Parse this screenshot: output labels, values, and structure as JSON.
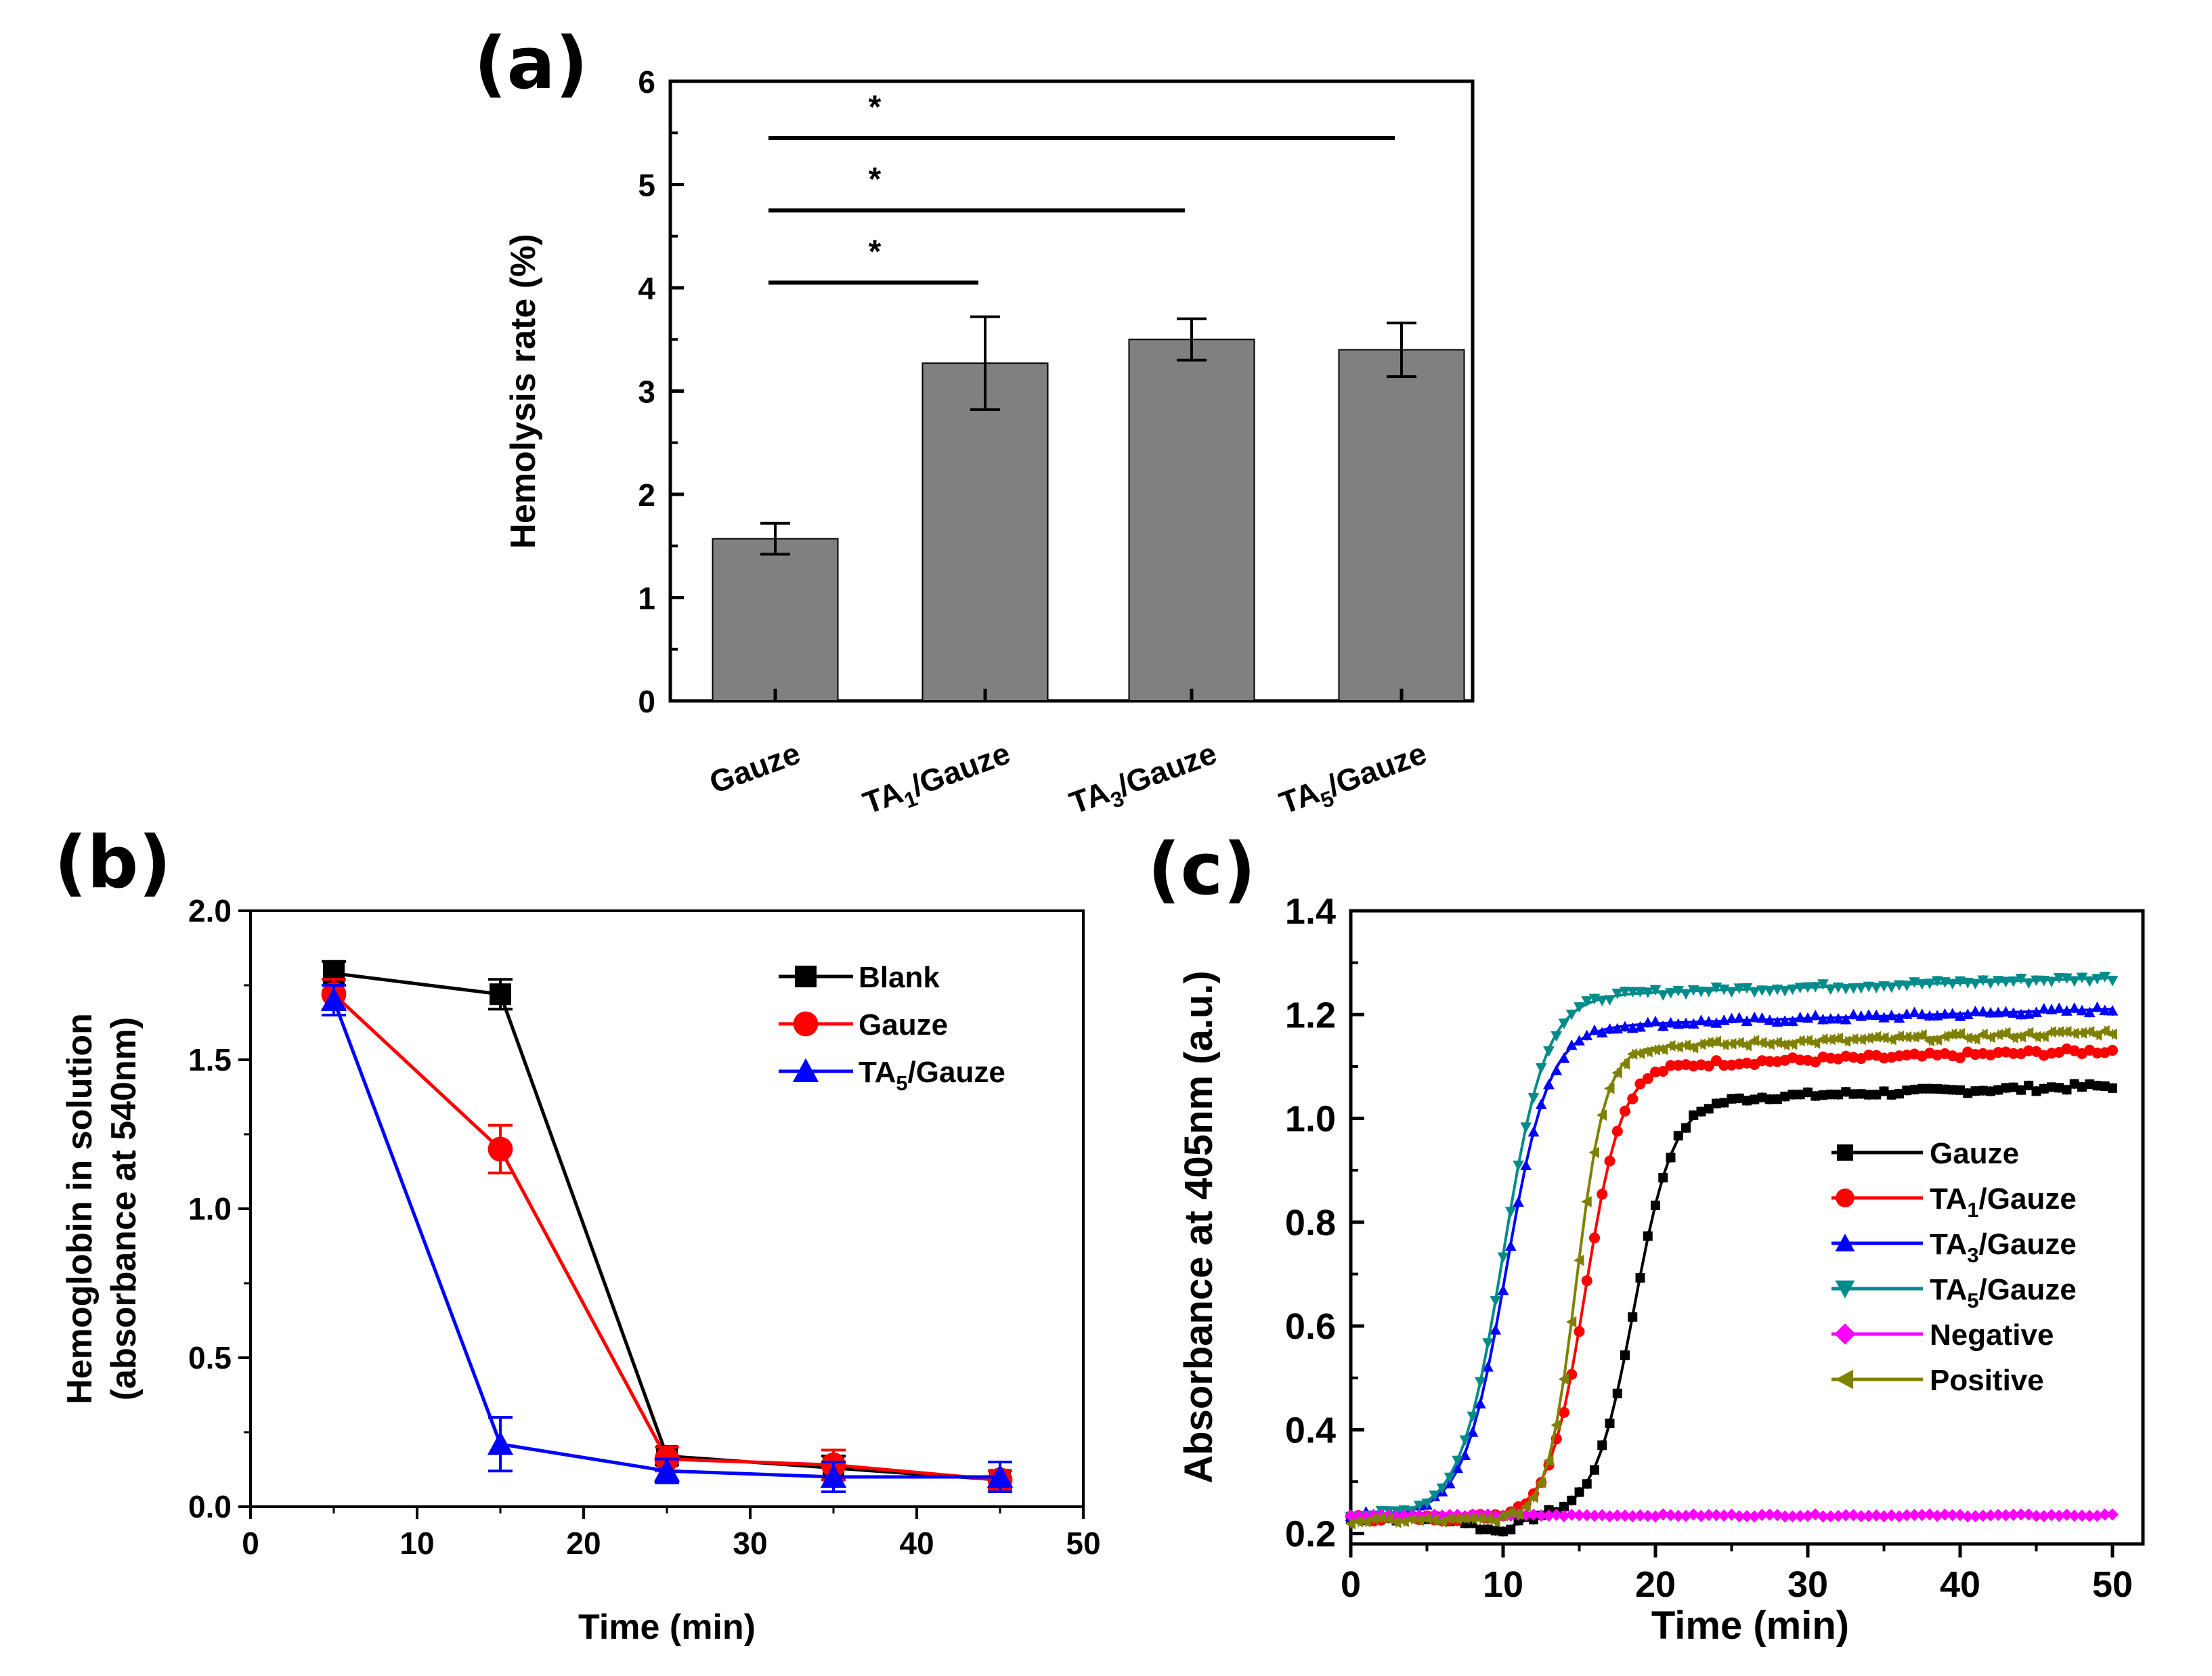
{
  "chart_data": [
    {
      "panel": "(a)",
      "type": "bar",
      "categories": [
        {
          "base": "Gauze",
          "sub": "",
          "rest": ""
        },
        {
          "base": "TA",
          "sub": "1",
          "rest": "/Gauze"
        },
        {
          "base": "TA",
          "sub": "3",
          "rest": "/Gauze"
        },
        {
          "base": "TA",
          "sub": "5",
          "rest": "/Gauze"
        }
      ],
      "values": [
        1.57,
        3.27,
        3.5,
        3.4
      ],
      "errors": [
        0.15,
        0.45,
        0.2,
        0.26
      ],
      "ylabel": "Hemolysis rate (%)",
      "xlabel": "",
      "ylim": [
        0,
        6
      ],
      "yticks": [
        "0",
        "1",
        "2",
        "3",
        "4",
        "5",
        "6"
      ],
      "bar_color": "#808080",
      "significance": [
        {
          "from": 0,
          "to": 1,
          "y": 4.05,
          "label": "*"
        },
        {
          "from": 0,
          "to": 2,
          "y": 4.75,
          "label": "*"
        },
        {
          "from": 0,
          "to": 3,
          "y": 5.45,
          "label": "*"
        }
      ]
    },
    {
      "panel": "(b)",
      "type": "line",
      "ylabel_line1": "Hemoglobin in solution",
      "ylabel_line2": "(absorbance at 540nm)",
      "xlabel": "Time (min)",
      "xlim": [
        0,
        50
      ],
      "ylim": [
        0,
        2.0
      ],
      "xticks": [
        "0",
        "10",
        "20",
        "30",
        "40",
        "50"
      ],
      "yticks": [
        "0.0",
        "0.5",
        "1.0",
        "1.5",
        "2.0"
      ],
      "x": [
        5,
        15,
        25,
        35,
        45
      ],
      "series": [
        {
          "name": "Blank",
          "base": "Blank",
          "sub": "",
          "rest": "",
          "color": "#000000",
          "marker": "square",
          "values": [
            1.79,
            1.72,
            0.17,
            0.13,
            0.09
          ],
          "errors": [
            0.04,
            0.05,
            0.03,
            0.04,
            0.03
          ]
        },
        {
          "name": "Gauze",
          "base": "Gauze",
          "sub": "",
          "rest": "",
          "color": "#ff0000",
          "marker": "circle",
          "values": [
            1.72,
            1.2,
            0.16,
            0.14,
            0.09
          ],
          "errors": [
            0.05,
            0.08,
            0.04,
            0.05,
            0.03
          ]
        },
        {
          "name": "TA5/Gauze",
          "base": "TA",
          "sub": "5",
          "rest": "/Gauze",
          "color": "#0000ff",
          "marker": "triangle",
          "values": [
            1.7,
            0.21,
            0.12,
            0.1,
            0.1
          ],
          "errors": [
            0.05,
            0.09,
            0.04,
            0.05,
            0.05
          ]
        }
      ]
    },
    {
      "panel": "(c)",
      "type": "line",
      "ylabel": "Absorbance at 405nm (a.u.)",
      "xlabel": "Time (min)",
      "xlim": [
        0,
        52
      ],
      "ylim": [
        0.18,
        1.4
      ],
      "xticks": [
        "0",
        "10",
        "20",
        "30",
        "40",
        "50"
      ],
      "yticks": [
        "0.2",
        "0.4",
        "0.6",
        "0.8",
        "1.0",
        "1.2",
        "1.4"
      ],
      "series": [
        {
          "name": "Gauze",
          "base": "Gauze",
          "sub": "",
          "rest": "",
          "color": "#000000",
          "marker": "square",
          "start": 0.23,
          "plateau": 1.04,
          "midpoint": 18.6,
          "width": 1.3,
          "dip": 0.025,
          "noise": 0.012
        },
        {
          "name": "TA1/Gauze",
          "base": "TA",
          "sub": "1",
          "rest": "/Gauze",
          "color": "#ff0000",
          "marker": "circle",
          "start": 0.23,
          "plateau": 1.105,
          "midpoint": 15.4,
          "width": 1.2,
          "dip": 0.0,
          "noise": 0.012
        },
        {
          "name": "TA3/Gauze",
          "base": "TA",
          "sub": "3",
          "rest": "/Gauze",
          "color": "#0000ff",
          "marker": "triangle",
          "start": 0.235,
          "plateau": 1.18,
          "midpoint": 10.2,
          "width": 1.4,
          "dip": 0.0,
          "noise": 0.012
        },
        {
          "name": "TA5/Gauze",
          "base": "TA",
          "sub": "5",
          "rest": "/Gauze",
          "color": "#008b8b",
          "marker": "triangle-down",
          "start": 0.235,
          "plateau": 1.24,
          "midpoint": 10.0,
          "width": 1.4,
          "dip": 0.0,
          "noise": 0.012
        },
        {
          "name": "Negative",
          "base": "Negative",
          "sub": "",
          "rest": "",
          "color": "#ff00ff",
          "marker": "diamond",
          "start": 0.235,
          "plateau": 0.235,
          "midpoint": 100,
          "width": 1,
          "dip": 0.0,
          "noise": 0.004
        },
        {
          "name": "Positive",
          "base": "Positive",
          "sub": "",
          "rest": "",
          "color": "#808000",
          "marker": "triangle-left",
          "start": 0.225,
          "plateau": 1.14,
          "midpoint": 14.8,
          "width": 0.95,
          "dip": 0.0,
          "noise": 0.012
        }
      ]
    }
  ]
}
